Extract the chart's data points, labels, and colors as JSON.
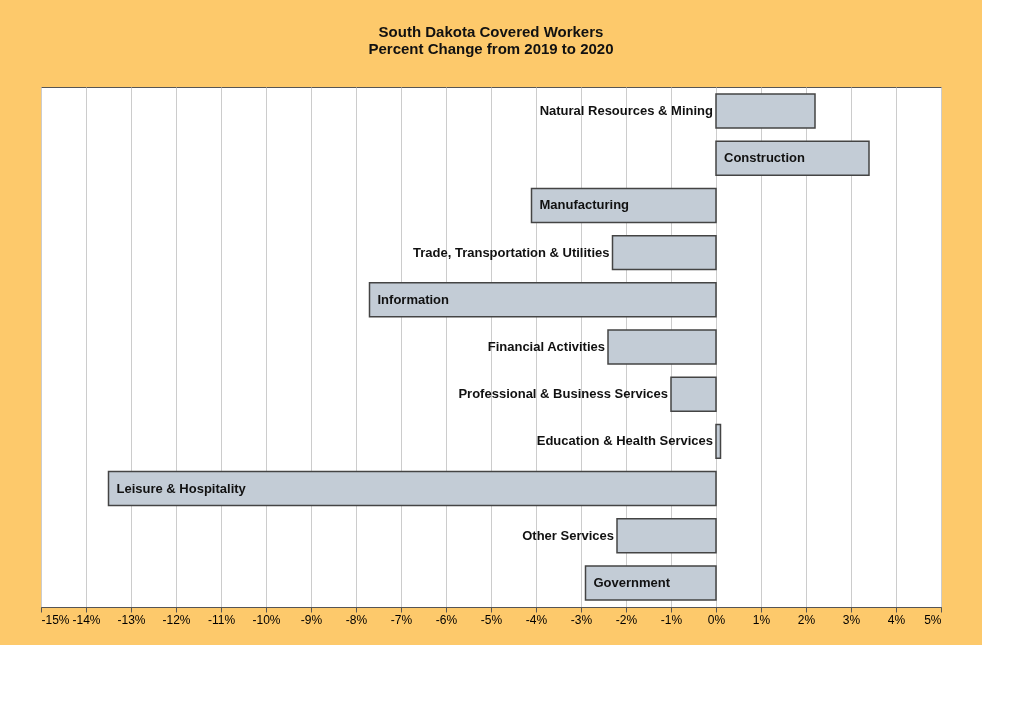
{
  "chart_data": {
    "type": "bar",
    "orientation": "horizontal",
    "title": "South Dakota Covered Workers\nPercent Change from 2019 to 2020",
    "categories": [
      "Natural Resources & Mining",
      "Construction",
      "Manufacturing",
      "Trade, Transportation & Utilities",
      "Information",
      "Financial Activities",
      "Professional & Business Services",
      "Education & Health Services",
      "Leisure & Hospitality",
      "Other Services",
      "Government"
    ],
    "values": [
      2.2,
      3.4,
      -4.1,
      -2.3,
      -7.7,
      -2.4,
      -1.0,
      0.1,
      -13.5,
      -2.2,
      -2.9
    ],
    "color": "#c3ccd6",
    "xlim": [
      -15,
      5
    ],
    "xticks": [
      {
        "value": -15,
        "label": "-15%"
      },
      {
        "value": -14,
        "label": "-14%"
      },
      {
        "value": -13,
        "label": "-13%"
      },
      {
        "value": -12,
        "label": "-12%"
      },
      {
        "value": -11,
        "label": "-11%"
      },
      {
        "value": -10,
        "label": "-10%"
      },
      {
        "value": -9,
        "label": "-9%"
      },
      {
        "value": -8,
        "label": "-8%"
      },
      {
        "value": -7,
        "label": "-7%"
      },
      {
        "value": -6,
        "label": "-6%"
      },
      {
        "value": -5,
        "label": "-5%"
      },
      {
        "value": -4,
        "label": "-4%"
      },
      {
        "value": -3,
        "label": "-3%"
      },
      {
        "value": -2,
        "label": "-2%"
      },
      {
        "value": -1,
        "label": "-1%"
      },
      {
        "value": 0,
        "label": "0%"
      },
      {
        "value": 1,
        "label": "1%"
      },
      {
        "value": 2,
        "label": "2%"
      },
      {
        "value": 3,
        "label": "3%"
      },
      {
        "value": 4,
        "label": "4%"
      },
      {
        "value": 5,
        "label": "5%"
      }
    ],
    "grid": "x"
  }
}
